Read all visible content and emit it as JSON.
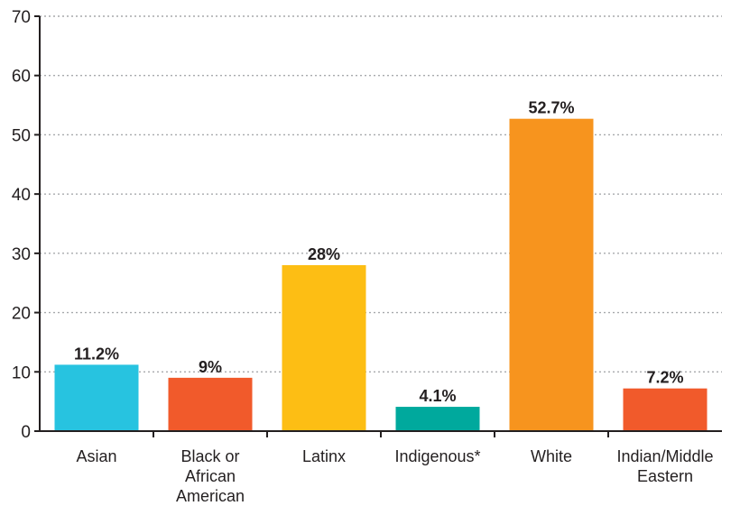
{
  "chart_data": {
    "type": "bar",
    "categories": [
      "Asian",
      "Black or African American",
      "Latinx",
      "Indigenous*",
      "White",
      "Indian/Middle Eastern"
    ],
    "category_lines": [
      [
        "Asian"
      ],
      [
        "Black or",
        "African",
        "American"
      ],
      [
        "Latinx"
      ],
      [
        "Indigenous*"
      ],
      [
        "White"
      ],
      [
        "Indian/Middle",
        "Eastern"
      ]
    ],
    "values": [
      11.2,
      9,
      28,
      4.1,
      52.7,
      7.2
    ],
    "data_labels": [
      "11.2%",
      "9%",
      "28%",
      "4.1%",
      "52.7%",
      "7.2%"
    ],
    "colors": [
      "#27c3e0",
      "#f15a2b",
      "#fdbe14",
      "#00a99d",
      "#f7941e",
      "#f15a2b"
    ],
    "ylim": [
      0,
      70
    ],
    "yticks": [
      0,
      10,
      20,
      30,
      40,
      50,
      60,
      70
    ],
    "title": "",
    "xlabel": "",
    "ylabel": "",
    "grid": true,
    "legend": "none"
  }
}
